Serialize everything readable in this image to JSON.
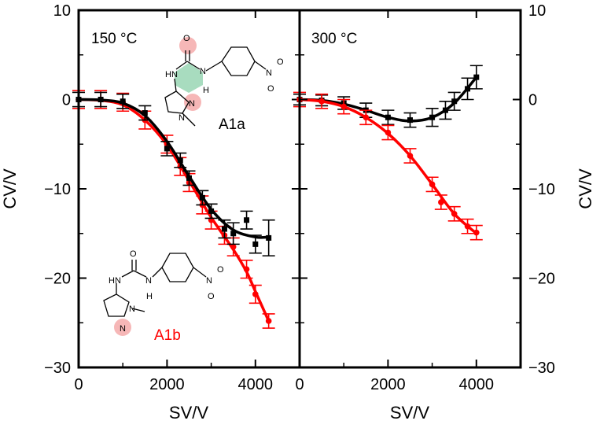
{
  "chart_data": [
    {
      "type": "scatter",
      "panel_label": "150 °C",
      "xlabel": "SV/V",
      "ylabel": "CV/V",
      "xlim": [
        0,
        5000
      ],
      "ylim": [
        -30,
        10
      ],
      "x_ticks": [
        0,
        2000,
        4000
      ],
      "y_ticks": [
        10,
        0,
        -10,
        -20,
        -30
      ],
      "grid": false,
      "series": [
        {
          "name": "A1a",
          "color": "#000000",
          "marker": "square",
          "points": [
            {
              "x": 0,
              "y": 0,
              "err": 0.8
            },
            {
              "x": 500,
              "y": 0,
              "err": 0.8
            },
            {
              "x": 1000,
              "y": -0.2,
              "err": 0.8
            },
            {
              "x": 1500,
              "y": -1.5,
              "err": 0.8
            },
            {
              "x": 2000,
              "y": -5.5,
              "err": 0.8
            },
            {
              "x": 2300,
              "y": -6.8,
              "err": 0.8
            },
            {
              "x": 2500,
              "y": -8.8,
              "err": 0.8
            },
            {
              "x": 2800,
              "y": -11.0,
              "err": 0.8
            },
            {
              "x": 3000,
              "y": -12.5,
              "err": 0.8
            },
            {
              "x": 3300,
              "y": -14.5,
              "err": 1.0
            },
            {
              "x": 3500,
              "y": -15.0,
              "err": 1.2
            },
            {
              "x": 3800,
              "y": -13.5,
              "err": 1.0
            },
            {
              "x": 4000,
              "y": -16.2,
              "err": 1.0
            },
            {
              "x": 4300,
              "y": -15.5,
              "err": 2.0
            }
          ],
          "fit": [
            {
              "x": 0,
              "y": 0
            },
            {
              "x": 500,
              "y": -0.05
            },
            {
              "x": 1000,
              "y": -0.4
            },
            {
              "x": 1500,
              "y": -1.8
            },
            {
              "x": 2000,
              "y": -4.7
            },
            {
              "x": 2500,
              "y": -8.6
            },
            {
              "x": 3000,
              "y": -12.3
            },
            {
              "x": 3500,
              "y": -14.6
            },
            {
              "x": 4000,
              "y": -15.4
            },
            {
              "x": 4300,
              "y": -15.4
            }
          ]
        },
        {
          "name": "A1b",
          "color": "#ff0000",
          "marker": "circle",
          "points": [
            {
              "x": 0,
              "y": 0,
              "err": 1.0
            },
            {
              "x": 500,
              "y": 0,
              "err": 1.0
            },
            {
              "x": 1000,
              "y": -0.3,
              "err": 1.0
            },
            {
              "x": 1500,
              "y": -2.3,
              "err": 1.0
            },
            {
              "x": 2000,
              "y": -5.0,
              "err": 1.0
            },
            {
              "x": 2300,
              "y": -7.5,
              "err": 1.0
            },
            {
              "x": 2500,
              "y": -9.3,
              "err": 1.0
            },
            {
              "x": 2800,
              "y": -11.8,
              "err": 1.0
            },
            {
              "x": 3000,
              "y": -13.5,
              "err": 1.0
            },
            {
              "x": 3300,
              "y": -15.2,
              "err": 1.0
            },
            {
              "x": 3500,
              "y": -16.5,
              "err": 1.0
            },
            {
              "x": 3800,
              "y": -19.0,
              "err": 1.0
            },
            {
              "x": 4000,
              "y": -21.8,
              "err": 1.0
            },
            {
              "x": 4300,
              "y": -24.8,
              "err": 0.8
            }
          ],
          "fit": [
            {
              "x": 0,
              "y": 0
            },
            {
              "x": 500,
              "y": -0.1
            },
            {
              "x": 1000,
              "y": -0.6
            },
            {
              "x": 1500,
              "y": -2.3
            },
            {
              "x": 2000,
              "y": -5.1
            },
            {
              "x": 2500,
              "y": -9.1
            },
            {
              "x": 3000,
              "y": -13.2
            },
            {
              "x": 3500,
              "y": -16.8
            },
            {
              "x": 3800,
              "y": -19.3
            },
            {
              "x": 4000,
              "y": -21.5
            },
            {
              "x": 4300,
              "y": -24.8
            }
          ]
        }
      ],
      "annotations": [
        {
          "text": "A1a",
          "color": "#000000"
        },
        {
          "text": "A1b",
          "color": "#ff0000"
        }
      ]
    },
    {
      "type": "scatter",
      "panel_label": "300 °C",
      "xlabel": "SV/V",
      "ylabel": "CV/V",
      "xlim": [
        0,
        5000
      ],
      "ylim": [
        -30,
        10
      ],
      "x_ticks": [
        0,
        2000,
        4000
      ],
      "y_ticks": [
        10,
        0,
        -10,
        -20,
        -30
      ],
      "grid": false,
      "series": [
        {
          "name": "A1a",
          "color": "#000000",
          "marker": "square",
          "points": [
            {
              "x": 0,
              "y": 0,
              "err": 0.6
            },
            {
              "x": 500,
              "y": -0.1,
              "err": 0.6
            },
            {
              "x": 1000,
              "y": -0.4,
              "err": 0.7
            },
            {
              "x": 1500,
              "y": -1.2,
              "err": 0.8
            },
            {
              "x": 2000,
              "y": -2.0,
              "err": 0.8
            },
            {
              "x": 2500,
              "y": -2.3,
              "err": 0.8
            },
            {
              "x": 3000,
              "y": -2.0,
              "err": 1.0
            },
            {
              "x": 3300,
              "y": -1.2,
              "err": 1.0
            },
            {
              "x": 3500,
              "y": -0.2,
              "err": 1.0
            },
            {
              "x": 3800,
              "y": 1.2,
              "err": 1.2
            },
            {
              "x": 4000,
              "y": 2.5,
              "err": 1.3
            }
          ],
          "fit": [
            {
              "x": 0,
              "y": 0
            },
            {
              "x": 500,
              "y": -0.1
            },
            {
              "x": 1000,
              "y": -0.5
            },
            {
              "x": 1500,
              "y": -1.2
            },
            {
              "x": 2000,
              "y": -2.0
            },
            {
              "x": 2500,
              "y": -2.4
            },
            {
              "x": 3000,
              "y": -2.0
            },
            {
              "x": 3500,
              "y": -0.4
            },
            {
              "x": 4000,
              "y": 2.5
            }
          ]
        },
        {
          "name": "A1b",
          "color": "#ff0000",
          "marker": "circle",
          "points": [
            {
              "x": 0,
              "y": 0,
              "err": 0.8
            },
            {
              "x": 500,
              "y": -0.2,
              "err": 0.8
            },
            {
              "x": 1000,
              "y": -0.8,
              "err": 0.8
            },
            {
              "x": 1500,
              "y": -2.0,
              "err": 0.8
            },
            {
              "x": 2000,
              "y": -3.7,
              "err": 0.8
            },
            {
              "x": 2500,
              "y": -6.3,
              "err": 0.8
            },
            {
              "x": 3000,
              "y": -9.5,
              "err": 0.8
            },
            {
              "x": 3200,
              "y": -11.5,
              "err": 0.8
            },
            {
              "x": 3500,
              "y": -12.8,
              "err": 0.8
            },
            {
              "x": 3800,
              "y": -14.2,
              "err": 0.8
            },
            {
              "x": 4000,
              "y": -14.9,
              "err": 0.8
            }
          ],
          "fit": [
            {
              "x": 0,
              "y": 0
            },
            {
              "x": 500,
              "y": -0.2
            },
            {
              "x": 1000,
              "y": -0.8
            },
            {
              "x": 1500,
              "y": -2.0
            },
            {
              "x": 2000,
              "y": -3.8
            },
            {
              "x": 2500,
              "y": -6.3
            },
            {
              "x": 3000,
              "y": -9.5
            },
            {
              "x": 3500,
              "y": -12.8
            },
            {
              "x": 4000,
              "y": -15.0
            }
          ]
        }
      ]
    }
  ],
  "molecules": {
    "a1a_atoms": [
      "O",
      "HN",
      "N",
      "H",
      "N",
      "N",
      "N",
      "O",
      "O"
    ],
    "a1b_atoms": [
      "O",
      "HN",
      "N",
      "H",
      "N",
      "N",
      "N",
      "O",
      "O"
    ]
  }
}
